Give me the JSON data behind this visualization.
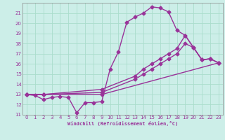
{
  "bg_color": "#cceee8",
  "grid_color": "#aaddcc",
  "line_color": "#993399",
  "marker": "D",
  "markersize": 2.5,
  "linewidth": 1.0,
  "xlabel": "Windchill (Refroidissement éolien,°C)",
  "xlim": [
    -0.5,
    23.5
  ],
  "ylim": [
    11,
    22
  ],
  "yticks": [
    11,
    12,
    13,
    14,
    15,
    16,
    17,
    18,
    19,
    20,
    21
  ],
  "xticks": [
    0,
    1,
    2,
    3,
    4,
    5,
    6,
    7,
    8,
    9,
    10,
    11,
    12,
    13,
    14,
    15,
    16,
    17,
    18,
    19,
    20,
    21,
    22,
    23
  ],
  "series": [
    [
      [
        0,
        13.0
      ],
      [
        1,
        12.9
      ],
      [
        2,
        12.5
      ],
      [
        3,
        12.7
      ],
      [
        4,
        12.8
      ],
      [
        5,
        12.7
      ],
      [
        6,
        11.2
      ],
      [
        7,
        12.2
      ],
      [
        8,
        12.2
      ],
      [
        9,
        12.3
      ],
      [
        10,
        15.5
      ],
      [
        11,
        17.2
      ],
      [
        12,
        20.1
      ],
      [
        13,
        20.6
      ],
      [
        14,
        21.0
      ],
      [
        15,
        21.6
      ],
      [
        16,
        21.5
      ],
      [
        17,
        21.1
      ],
      [
        18,
        19.3
      ],
      [
        19,
        18.8
      ],
      [
        20,
        17.6
      ],
      [
        21,
        16.4
      ],
      [
        22,
        16.5
      ],
      [
        23,
        16.1
      ]
    ],
    [
      [
        0,
        13.0
      ],
      [
        2,
        13.0
      ],
      [
        9,
        13.5
      ],
      [
        13,
        14.8
      ],
      [
        14,
        15.5
      ],
      [
        15,
        16.0
      ],
      [
        16,
        16.5
      ],
      [
        17,
        17.0
      ],
      [
        18,
        17.5
      ],
      [
        19,
        18.8
      ],
      [
        20,
        17.6
      ],
      [
        21,
        16.4
      ],
      [
        22,
        16.5
      ],
      [
        23,
        16.1
      ]
    ],
    [
      [
        0,
        13.0
      ],
      [
        2,
        13.0
      ],
      [
        9,
        13.2
      ],
      [
        13,
        14.5
      ],
      [
        14,
        15.0
      ],
      [
        15,
        15.5
      ],
      [
        16,
        16.0
      ],
      [
        17,
        16.5
      ],
      [
        18,
        17.0
      ],
      [
        19,
        18.0
      ],
      [
        20,
        17.6
      ],
      [
        21,
        16.4
      ],
      [
        22,
        16.5
      ],
      [
        23,
        16.1
      ]
    ],
    [
      [
        0,
        13.0
      ],
      [
        2,
        13.0
      ],
      [
        9,
        13.0
      ],
      [
        23,
        16.1
      ]
    ]
  ]
}
